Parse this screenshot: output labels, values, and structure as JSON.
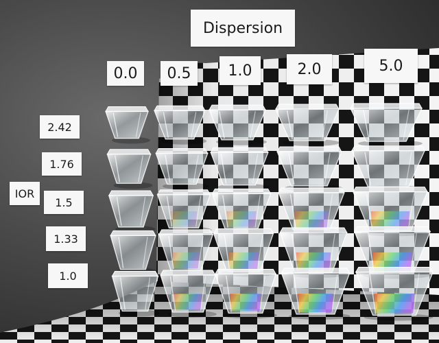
{
  "title": "Dispersion",
  "row_axis_label": "IOR",
  "columns": [
    "0.0",
    "0.5",
    "1.0",
    "2.0",
    "5.0"
  ],
  "rows": [
    "2.42",
    "1.76",
    "1.5",
    "1.33",
    "1.0"
  ],
  "colors": {
    "background": "#3a3a3a",
    "checker_dark": "#151515",
    "checker_light": "#f4f4f4",
    "label_fill": "#f7f7f7",
    "label_text": "#1a1a1a"
  }
}
